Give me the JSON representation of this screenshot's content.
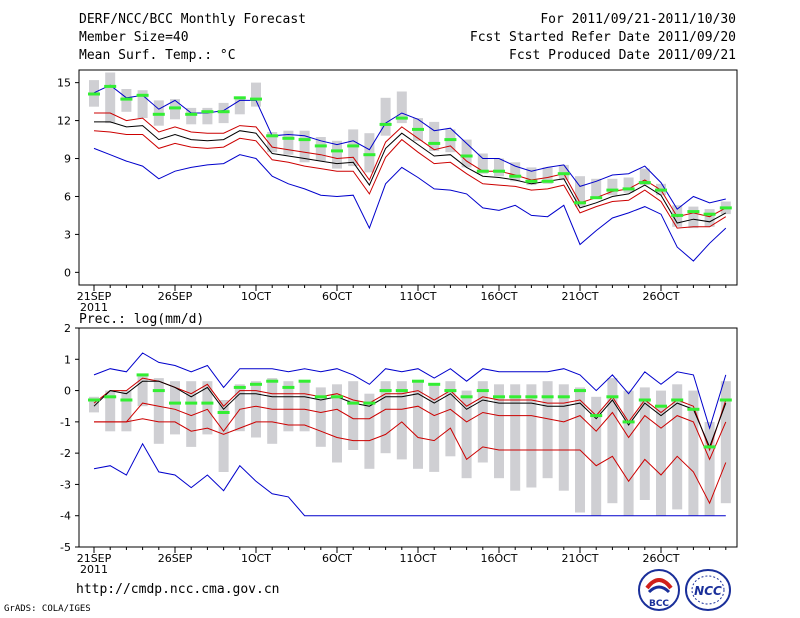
{
  "header": {
    "title": "DERF/NCC/BCC Monthly Forecast",
    "member_size": "Member Size=40",
    "variable": "Mean Surf. Temp.: °C",
    "period": "For 2011/09/21-2011/10/30",
    "start_date": "Fcst Started Refer Date 2011/09/20",
    "produced_date": "Fcst Produced Date 2011/09/21"
  },
  "footer": {
    "url": "http://cmdp.ncc.cma.gov.cn",
    "credit": "GrADS: COLA/IGES",
    "logo_left": "BCC",
    "logo_right": "NCC"
  },
  "colors": {
    "envelope": "#0000cc",
    "quartile": "#cc0000",
    "median": "#000000",
    "mean_marker": "#33ee33",
    "box": "#cfcfd3"
  },
  "chart_data": [
    {
      "type": "line",
      "title": "Mean Surf. Temp.: °C",
      "x_tick_labels": [
        "21SEP",
        "26SEP",
        "1OCT",
        "6OCT",
        "11OCT",
        "16OCT",
        "21OCT",
        "26OCT"
      ],
      "x_tick_days": [
        1,
        6,
        11,
        16,
        21,
        26,
        31,
        36
      ],
      "x_sublabel": "2011",
      "ylim": [
        -1,
        16
      ],
      "yticks": [
        0,
        3,
        6,
        9,
        12,
        15
      ],
      "days": [
        1,
        2,
        3,
        4,
        5,
        6,
        7,
        8,
        9,
        10,
        11,
        12,
        13,
        14,
        15,
        16,
        17,
        18,
        19,
        20,
        21,
        22,
        23,
        24,
        25,
        26,
        27,
        28,
        29,
        30,
        31,
        32,
        33,
        34,
        35,
        36,
        37,
        38,
        39,
        40
      ],
      "series": [
        {
          "name": "max",
          "color": "#0000cc",
          "values": [
            14.2,
            14.8,
            13.8,
            14.0,
            12.9,
            13.6,
            12.6,
            12.6,
            12.8,
            13.6,
            13.6,
            10.8,
            10.9,
            10.8,
            10.4,
            10.1,
            10.4,
            9.7,
            11.8,
            12.6,
            12.1,
            11.2,
            11.4,
            10.2,
            9.0,
            9.0,
            8.4,
            8.0,
            8.3,
            8.5,
            6.8,
            7.2,
            7.7,
            7.8,
            8.4,
            7.1,
            5.0,
            6.0,
            5.5,
            5.8
          ]
        },
        {
          "name": "upper_quartile",
          "color": "#cc0000",
          "values": [
            12.6,
            12.6,
            12.0,
            12.2,
            11.1,
            11.5,
            11.1,
            11.0,
            11.0,
            11.6,
            11.5,
            9.9,
            9.7,
            9.5,
            9.3,
            9.0,
            9.1,
            7.3,
            10.3,
            11.5,
            10.6,
            9.7,
            10.0,
            8.8,
            8.0,
            8.0,
            7.7,
            7.3,
            7.5,
            7.8,
            5.5,
            5.9,
            6.4,
            6.6,
            7.3,
            6.5,
            4.4,
            4.7,
            4.4,
            5.1
          ]
        },
        {
          "name": "median",
          "color": "#000000",
          "values": [
            11.9,
            11.9,
            11.5,
            11.6,
            10.5,
            10.9,
            10.5,
            10.4,
            10.5,
            11.2,
            11.0,
            9.4,
            9.2,
            9.0,
            8.8,
            8.6,
            8.7,
            6.9,
            9.8,
            11.0,
            10.1,
            9.2,
            9.3,
            8.3,
            7.6,
            7.5,
            7.3,
            7.0,
            7.2,
            7.4,
            5.1,
            5.5,
            6.0,
            6.2,
            6.9,
            6.1,
            3.9,
            4.2,
            4.0,
            4.7
          ]
        },
        {
          "name": "lower_quartile",
          "color": "#cc0000",
          "values": [
            11.2,
            11.1,
            10.9,
            10.9,
            9.8,
            10.2,
            9.9,
            9.8,
            9.9,
            10.6,
            10.4,
            8.9,
            8.7,
            8.4,
            8.2,
            8.0,
            8.0,
            6.2,
            9.1,
            10.5,
            9.5,
            8.6,
            8.7,
            7.8,
            7.0,
            6.9,
            6.8,
            6.5,
            6.6,
            6.9,
            4.7,
            5.2,
            5.6,
            5.7,
            6.5,
            5.6,
            3.5,
            3.6,
            3.6,
            4.4
          ]
        },
        {
          "name": "min",
          "color": "#0000cc",
          "values": [
            9.8,
            9.3,
            8.8,
            8.4,
            7.4,
            8.0,
            8.3,
            8.5,
            8.6,
            9.3,
            9.0,
            7.6,
            7.0,
            6.6,
            6.1,
            6.0,
            6.1,
            3.5,
            7.0,
            8.3,
            7.5,
            6.6,
            6.5,
            6.2,
            5.1,
            4.9,
            5.3,
            4.5,
            4.4,
            5.3,
            2.2,
            3.3,
            4.3,
            4.7,
            5.2,
            4.6,
            2.0,
            0.9,
            2.3,
            3.5
          ]
        },
        {
          "name": "box_top",
          "color": "#cfcfd3",
          "values": [
            15.2,
            15.8,
            14.5,
            14.4,
            13.6,
            13.7,
            13.0,
            13.0,
            13.4,
            13.9,
            15.0,
            11.1,
            11.2,
            11.2,
            10.7,
            10.4,
            11.3,
            11.0,
            13.8,
            14.3,
            12.2,
            11.9,
            11.3,
            10.5,
            9.4,
            9.0,
            8.7,
            8.3,
            8.3,
            8.5,
            7.6,
            7.4,
            7.4,
            7.5,
            8.2,
            7.0,
            5.3,
            5.2,
            5.0,
            5.6
          ]
        },
        {
          "name": "box_bottom",
          "color": "#cfcfd3",
          "values": [
            13.1,
            11.8,
            12.7,
            12.2,
            11.6,
            12.1,
            11.7,
            11.7,
            11.8,
            12.5,
            13.1,
            9.5,
            9.3,
            8.7,
            8.8,
            8.2,
            8.4,
            7.9,
            10.8,
            11.8,
            10.4,
            9.6,
            9.5,
            8.3,
            7.8,
            7.6,
            7.2,
            6.9,
            7.0,
            7.3,
            5.2,
            5.8,
            6.1,
            6.3,
            6.9,
            6.1,
            3.6,
            3.5,
            3.6,
            4.6
          ]
        },
        {
          "name": "mean_marker",
          "color": "#33ee33",
          "values": [
            14.1,
            14.7,
            13.7,
            14.0,
            12.5,
            13.0,
            12.5,
            12.7,
            12.7,
            13.8,
            13.7,
            10.8,
            10.6,
            10.5,
            10.0,
            9.6,
            10.0,
            9.3,
            11.7,
            12.2,
            11.3,
            10.2,
            10.5,
            9.2,
            8.0,
            8.0,
            7.6,
            7.2,
            7.2,
            7.8,
            5.5,
            5.9,
            6.5,
            6.6,
            7.1,
            6.5,
            4.5,
            4.8,
            4.6,
            5.1
          ]
        }
      ]
    },
    {
      "type": "line",
      "title": "Prec.: log(mm/d)",
      "x_tick_labels": [
        "21SEP",
        "26SEP",
        "1OCT",
        "6OCT",
        "11OCT",
        "16OCT",
        "21OCT",
        "26OCT"
      ],
      "x_tick_days": [
        1,
        6,
        11,
        16,
        21,
        26,
        31,
        36
      ],
      "x_sublabel": "2011",
      "ylim": [
        -5,
        2
      ],
      "yticks": [
        -5,
        -4,
        -3,
        -2,
        -1,
        0,
        1,
        2
      ],
      "days": [
        1,
        2,
        3,
        4,
        5,
        6,
        7,
        8,
        9,
        10,
        11,
        12,
        13,
        14,
        15,
        16,
        17,
        18,
        19,
        20,
        21,
        22,
        23,
        24,
        25,
        26,
        27,
        28,
        29,
        30,
        31,
        32,
        33,
        34,
        35,
        36,
        37,
        38,
        39,
        40
      ],
      "series": [
        {
          "name": "max",
          "color": "#0000cc",
          "values": [
            0.5,
            0.7,
            0.6,
            1.2,
            0.9,
            0.8,
            0.6,
            0.8,
            0.1,
            0.7,
            0.7,
            0.7,
            0.6,
            0.7,
            0.6,
            0.7,
            0.5,
            0.2,
            0.7,
            0.6,
            0.7,
            0.4,
            0.7,
            0.3,
            0.7,
            0.6,
            0.6,
            0.6,
            0.6,
            0.7,
            0.5,
            0.0,
            0.5,
            -0.1,
            0.6,
            0.2,
            0.6,
            0.5,
            -1.2,
            0.5
          ]
        },
        {
          "name": "upper_quartile",
          "color": "#cc0000",
          "values": [
            -0.4,
            0.0,
            0.0,
            0.4,
            0.3,
            0.1,
            -0.1,
            0.2,
            -0.5,
            0.0,
            0.0,
            -0.1,
            -0.1,
            -0.1,
            -0.2,
            -0.1,
            -0.3,
            -0.4,
            -0.1,
            -0.1,
            0.0,
            -0.3,
            0.0,
            -0.5,
            -0.2,
            -0.3,
            -0.3,
            -0.3,
            -0.4,
            -0.4,
            -0.3,
            -0.8,
            -0.2,
            -1.0,
            -0.3,
            -0.7,
            -0.3,
            -0.5,
            -1.9,
            -0.3
          ]
        },
        {
          "name": "median",
          "color": "#000000",
          "values": [
            -0.5,
            0.0,
            -0.1,
            0.3,
            0.3,
            0.1,
            -0.2,
            0.1,
            -0.6,
            -0.1,
            -0.1,
            -0.2,
            -0.2,
            -0.2,
            -0.3,
            -0.2,
            -0.4,
            -0.5,
            -0.2,
            -0.2,
            -0.1,
            -0.4,
            -0.1,
            -0.6,
            -0.3,
            -0.4,
            -0.4,
            -0.4,
            -0.5,
            -0.5,
            -0.4,
            -0.9,
            -0.3,
            -1.1,
            -0.4,
            -0.8,
            -0.4,
            -0.6,
            -1.8,
            -0.4
          ]
        },
        {
          "name": "lower_quartile",
          "color": "#cc0000",
          "values": [
            -1.0,
            -1.0,
            -1.0,
            -0.4,
            -0.5,
            -0.6,
            -0.8,
            -0.6,
            -1.3,
            -0.6,
            -0.5,
            -0.6,
            -0.6,
            -0.6,
            -0.7,
            -0.6,
            -0.9,
            -0.9,
            -0.6,
            -0.6,
            -0.5,
            -0.8,
            -0.6,
            -1.0,
            -0.7,
            -0.8,
            -0.8,
            -0.8,
            -0.9,
            -1.0,
            -0.8,
            -1.3,
            -0.7,
            -1.5,
            -0.8,
            -1.2,
            -0.8,
            -1.0,
            -2.2,
            -1.0
          ]
        },
        {
          "name": "lower_decile",
          "color": "#cc0000",
          "values": [
            -1.0,
            -1.0,
            -1.0,
            -0.9,
            -1.0,
            -1.0,
            -1.3,
            -1.2,
            -1.4,
            -1.2,
            -1.0,
            -1.0,
            -1.1,
            -1.1,
            -1.3,
            -1.5,
            -1.6,
            -1.6,
            -1.4,
            -1.0,
            -1.5,
            -1.6,
            -1.2,
            -2.2,
            -1.8,
            -1.9,
            -1.9,
            -1.9,
            -1.9,
            -1.9,
            -1.9,
            -2.4,
            -2.1,
            -2.9,
            -2.2,
            -2.7,
            -2.1,
            -2.6,
            -3.6,
            -2.3
          ]
        },
        {
          "name": "min",
          "color": "#0000cc",
          "values": [
            -2.5,
            -2.4,
            -2.7,
            -1.7,
            -2.6,
            -2.7,
            -3.1,
            -2.7,
            -3.2,
            -2.4,
            -2.9,
            -3.3,
            -3.4,
            -4.0,
            -4.0,
            -4.0,
            -4.0,
            -4.0,
            -4.0,
            -4.0,
            -4.0,
            -4.0,
            -4.0,
            -4.0,
            -4.0,
            -4.0,
            -4.0,
            -4.0,
            -4.0,
            -4.0,
            -4.0,
            -4.0,
            -4.0,
            -4.0,
            -4.0,
            -4.0,
            -4.0,
            -4.0,
            -4.0,
            -4.0
          ]
        },
        {
          "name": "box_top",
          "color": "#cfcfd3",
          "values": [
            -0.2,
            0.0,
            0.0,
            0.5,
            0.4,
            0.3,
            0.3,
            0.3,
            -0.3,
            0.2,
            0.3,
            0.4,
            0.3,
            0.3,
            0.1,
            0.2,
            0.3,
            -0.1,
            0.3,
            0.3,
            0.3,
            0.2,
            0.3,
            0.0,
            0.3,
            0.2,
            0.2,
            0.2,
            0.3,
            0.2,
            0.1,
            -0.2,
            0.4,
            0.0,
            0.1,
            0.0,
            0.2,
            0.0,
            -1.0,
            0.3
          ]
        },
        {
          "name": "box_bottom",
          "color": "#cfcfd3",
          "values": [
            -0.7,
            -1.3,
            -1.3,
            -0.5,
            -1.7,
            -1.4,
            -1.8,
            -1.4,
            -2.6,
            -1.3,
            -1.5,
            -1.7,
            -1.3,
            -1.3,
            -1.8,
            -2.3,
            -1.9,
            -2.5,
            -2.0,
            -2.2,
            -2.5,
            -2.6,
            -2.1,
            -2.8,
            -2.3,
            -2.8,
            -3.2,
            -3.1,
            -2.8,
            -3.2,
            -3.9,
            -4.0,
            -3.6,
            -4.0,
            -3.5,
            -4.0,
            -3.8,
            -4.0,
            -4.0,
            -3.6
          ]
        },
        {
          "name": "mean_marker",
          "color": "#33ee33",
          "values": [
            -0.3,
            -0.2,
            -0.3,
            0.5,
            0.0,
            -0.4,
            -0.4,
            -0.4,
            -0.7,
            0.1,
            0.2,
            0.3,
            0.1,
            0.3,
            -0.2,
            -0.2,
            -0.4,
            -0.4,
            0.0,
            0.0,
            0.3,
            0.2,
            0.0,
            -0.2,
            0.0,
            -0.2,
            -0.2,
            -0.2,
            -0.2,
            -0.2,
            0.0,
            -0.8,
            -0.2,
            -1.0,
            -0.3,
            -0.5,
            -0.3,
            -0.6,
            -1.8,
            -0.3
          ]
        }
      ]
    }
  ]
}
